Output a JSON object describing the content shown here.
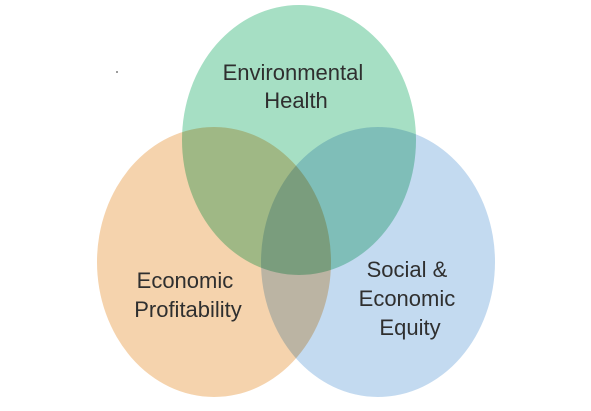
{
  "diagram": {
    "type": "venn",
    "sets": [
      {
        "id": "environmental",
        "label_lines": [
          "Environmental",
          "Health"
        ],
        "color": "#a6dfc4"
      },
      {
        "id": "economic",
        "label_lines": [
          "Economic",
          "Profitability"
        ],
        "color": "#f5d3ad"
      },
      {
        "id": "social",
        "label_lines": [
          "Social &",
          "Economic",
          "Equity"
        ],
        "color": "#c3daf0"
      }
    ]
  }
}
